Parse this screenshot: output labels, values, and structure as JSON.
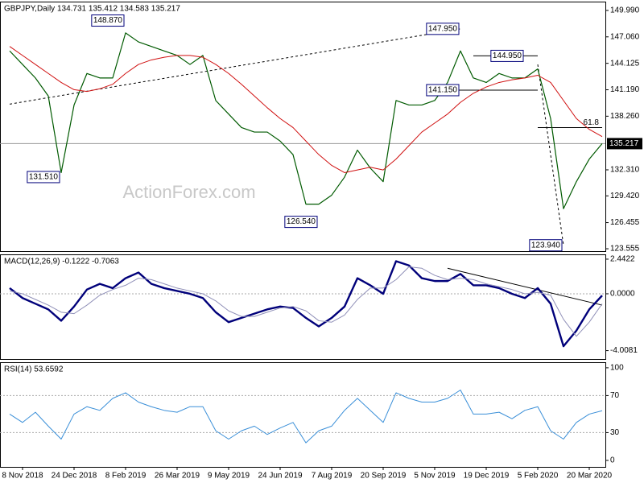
{
  "chart_data": {
    "type": "line",
    "watermark": "ActionForex.com",
    "categories": [
      null,
      "8 Nov 2018",
      null,
      null,
      null,
      "24 Dec 2018",
      null,
      null,
      null,
      "8 Feb 2019",
      null,
      null,
      null,
      "26 Mar 2019",
      null,
      null,
      null,
      "9 May 2019",
      null,
      null,
      null,
      "24 Jun 2019",
      null,
      null,
      null,
      "7 Aug 2019",
      null,
      null,
      null,
      "20 Sep 2019",
      null,
      null,
      null,
      "5 Nov 2019",
      null,
      null,
      null,
      "19 Dec 2019",
      null,
      null,
      null,
      "5 Feb 2020",
      null,
      null,
      null,
      "20 Mar 2020",
      null
    ],
    "panels": [
      {
        "title": "GBPJPY,Daily  134.731 135.412 134.583 135.217",
        "ylim": [
          123.29,
          150.97
        ],
        "yticks": [
          {
            "value": 149.99,
            "label": "149.990"
          },
          {
            "value": 147.06,
            "label": "147.060"
          },
          {
            "value": 144.125,
            "label": "144.125"
          },
          {
            "value": 141.19,
            "label": "141.190"
          },
          {
            "value": 138.26,
            "label": "138.260"
          },
          {
            "value": 132.31,
            "label": "132.310"
          },
          {
            "value": 129.42,
            "label": "129.420"
          },
          {
            "value": 126.455,
            "label": "126.455"
          },
          {
            "value": 123.555,
            "label": "123.555"
          }
        ],
        "last_price_line": true,
        "series": [
          {
            "name": "GBPJPY",
            "color": "#005a00",
            "width": 1.2,
            "values": [
              145.5,
              144.0,
              142.5,
              140.5,
              132.0,
              139.5,
              143.0,
              142.5,
              142.5,
              147.5,
              146.5,
              146.0,
              145.5,
              145.0,
              144.0,
              145.0,
              140.0,
              138.5,
              137.0,
              136.5,
              136.5,
              135.5,
              134.0,
              128.5,
              128.5,
              129.5,
              131.5,
              134.5,
              132.5,
              131.0,
              140.0,
              139.5,
              139.5,
              140.0,
              142.0,
              145.5,
              142.5,
              142.0,
              143.0,
              142.5,
              142.5,
              143.5,
              138.0,
              128.0,
              131.0,
              133.5,
              135.217
            ]
          },
          {
            "name": "MA",
            "color": "#d01010",
            "width": 1,
            "values": [
              146.0,
              145.0,
              144.0,
              143.0,
              142.0,
              141.2,
              141.0,
              141.3,
              141.8,
              143.0,
              144.0,
              144.5,
              144.8,
              145.0,
              145.0,
              144.8,
              144.0,
              143.0,
              141.8,
              140.5,
              139.2,
              138.0,
              137.0,
              135.5,
              134.0,
              132.8,
              132.0,
              132.3,
              132.6,
              132.3,
              133.5,
              135.0,
              136.5,
              137.5,
              138.5,
              139.8,
              140.8,
              141.5,
              142.0,
              142.3,
              142.5,
              142.8,
              142.0,
              140.0,
              138.0,
              136.8,
              136.0
            ]
          }
        ],
        "trendlines": [
          {
            "from": [
              0,
              139.6
            ],
            "to": [
              35,
              147.95
            ],
            "dashed": true
          },
          {
            "from": [
              33,
              141.15
            ],
            "to": [
              41,
              141.15
            ],
            "dashed": false
          },
          {
            "from": [
              36,
              144.95
            ],
            "to": [
              41,
              144.95
            ],
            "dashed": false
          },
          {
            "from": [
              41,
              137.0
            ],
            "to": [
              46,
              137.0
            ],
            "dashed": false
          },
          {
            "from": [
              41,
              144.0
            ],
            "to": [
              43,
              123.94
            ],
            "dashed": true
          }
        ],
        "annotations": [
          {
            "at": 9,
            "value": 148.87,
            "label": "148.870",
            "boxed": true
          },
          {
            "at": 4,
            "value": 131.51,
            "label": "131.510",
            "boxed": true
          },
          {
            "at": 35,
            "value": 147.95,
            "label": "147.950",
            "boxed": true
          },
          {
            "at": 24,
            "value": 126.54,
            "label": "126.540",
            "boxed": true
          },
          {
            "at": 40,
            "value": 144.95,
            "label": "144.950",
            "boxed": true
          },
          {
            "at": 35,
            "value": 141.15,
            "label": "141.150",
            "boxed": true
          },
          {
            "at": 43,
            "value": 123.94,
            "label": "123.940",
            "boxed": true
          },
          {
            "at": 46,
            "value": 137.0,
            "label": "61.8",
            "boxed": false
          }
        ]
      },
      {
        "title": "MACD(12,26,9) -0.1222 -0.7063",
        "ylim": [
          -4.6,
          2.78
        ],
        "yticks": [
          {
            "value": 2.4422,
            "label": "2.4422"
          },
          {
            "value": 0,
            "label": "0.0000"
          },
          {
            "value": -4.0081,
            "label": "-4.0081"
          }
        ],
        "levels": [
          0
        ],
        "series": [
          {
            "name": "MACD",
            "color": "#00007a",
            "width": 2.4,
            "values": [
              0.4,
              -0.3,
              -0.7,
              -1.1,
              -1.9,
              -0.9,
              0.3,
              0.7,
              0.4,
              1.1,
              1.5,
              0.7,
              0.4,
              0.2,
              0.0,
              -0.3,
              -1.3,
              -2.0,
              -1.7,
              -1.4,
              -1.1,
              -0.9,
              -1.0,
              -1.7,
              -2.3,
              -1.7,
              -0.9,
              1.1,
              0.6,
              0.0,
              2.3,
              2.0,
              1.1,
              0.9,
              0.9,
              1.4,
              0.6,
              0.6,
              0.4,
              0.0,
              -0.3,
              0.4,
              -0.7,
              -3.7,
              -2.6,
              -1.1,
              -0.1222
            ]
          },
          {
            "name": "Signal",
            "color": "#9090b8",
            "width": 1,
            "values": [
              0.2,
              0.0,
              -0.4,
              -0.8,
              -1.3,
              -1.4,
              -0.8,
              -0.1,
              0.3,
              0.6,
              1.1,
              1.0,
              0.7,
              0.4,
              0.2,
              0.0,
              -0.5,
              -1.2,
              -1.6,
              -1.6,
              -1.3,
              -1.0,
              -0.9,
              -1.2,
              -1.9,
              -2.0,
              -1.5,
              -0.4,
              0.4,
              0.4,
              1.0,
              1.9,
              1.8,
              1.3,
              1.0,
              1.1,
              1.0,
              0.7,
              0.5,
              0.3,
              0.0,
              0.1,
              -0.1,
              -1.8,
              -3.0,
              -2.0,
              -0.7063
            ]
          }
        ],
        "trendlines": [
          {
            "from": [
              34,
              1.8
            ],
            "to": [
              46,
              -0.8
            ],
            "dashed": false
          }
        ]
      },
      {
        "title": "RSI(14) 53.6592",
        "ylim": [
          -7,
          106
        ],
        "yticks": [
          100,
          70,
          30,
          0
        ],
        "levels": [
          70,
          30
        ],
        "series": [
          {
            "name": "RSI",
            "color": "#3a8fd8",
            "width": 1,
            "values": [
              50,
              41,
              52,
              37,
              23,
              50,
              58,
              54,
              67,
              73,
              63,
              58,
              54,
              52,
              58,
              58,
              32,
              23,
              32,
              37,
              28,
              35,
              41,
              19,
              32,
              37,
              54,
              67,
              54,
              41,
              73,
              67,
              63,
              63,
              67,
              76,
              50,
              50,
              52,
              45,
              54,
              58,
              32,
              23,
              41,
              50,
              53.6592
            ]
          }
        ]
      }
    ]
  }
}
